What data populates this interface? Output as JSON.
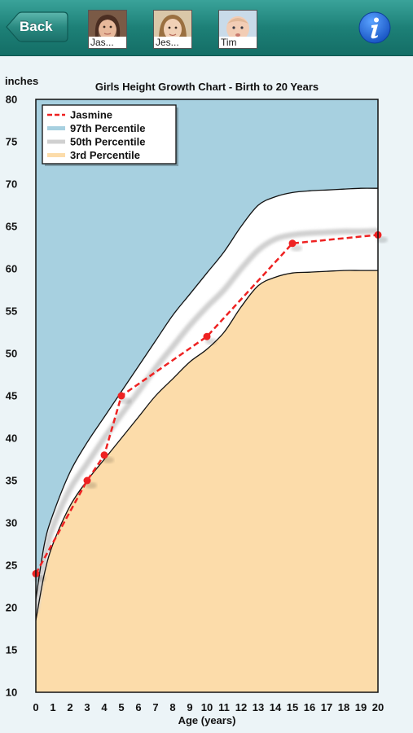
{
  "nav": {
    "back_label": "Back",
    "profiles": [
      {
        "name": "Jas...",
        "icon": "girl-photo"
      },
      {
        "name": "Jes...",
        "icon": "girl-photo"
      },
      {
        "name": "Tim",
        "icon": "baby-photo"
      }
    ],
    "info_icon": "info-icon",
    "colors": {
      "bar": "#1d8077",
      "info": "#1a66d6"
    }
  },
  "chart_data": {
    "type": "line",
    "title": "Girls Height Growth Chart - Birth to 20 Years",
    "ylabel": "inches",
    "xlabel": "Age (years)",
    "xlim": [
      0,
      20
    ],
    "ylim": [
      10,
      80
    ],
    "x_ticks": [
      "0",
      "1",
      "2",
      "3",
      "4",
      "5",
      "6",
      "7",
      "8",
      "9",
      "10",
      "11",
      "12",
      "13",
      "14",
      "15",
      "16",
      "17",
      "18",
      "19",
      "20"
    ],
    "y_ticks": [
      "10",
      "15",
      "20",
      "25",
      "30",
      "35",
      "40",
      "45",
      "50",
      "55",
      "60",
      "65",
      "70",
      "75",
      "80"
    ],
    "legend_position": "top-left",
    "colors": {
      "p97": "#a7d0e0",
      "p50": "#d0d0d0",
      "p3": "#fcdcaa",
      "jasmine": "#ee2222"
    },
    "legend": [
      "Jasmine",
      "97th Percentile",
      "50th Percentile",
      "3rd Percentile"
    ],
    "series": [
      {
        "name": "Jasmine",
        "x": [
          0,
          3,
          4,
          5,
          10,
          15,
          20
        ],
        "y": [
          24,
          35,
          38,
          45,
          52,
          63,
          64
        ]
      },
      {
        "name": "97th Percentile",
        "x": [
          0,
          0.5,
          1,
          2,
          3,
          4,
          5,
          6,
          7,
          8,
          9,
          10,
          11,
          12,
          13,
          14,
          15,
          16,
          17,
          18,
          19,
          20
        ],
        "y": [
          21,
          27.5,
          31,
          36,
          39.5,
          42.5,
          45.5,
          48.5,
          51.5,
          54.5,
          57,
          59.5,
          62,
          65,
          67.5,
          68.5,
          69,
          69.2,
          69.3,
          69.4,
          69.5,
          69.5
        ]
      },
      {
        "name": "50th Percentile",
        "x": [
          0,
          0.5,
          1,
          2,
          3,
          4,
          5,
          6,
          7,
          8,
          9,
          10,
          11,
          12,
          13,
          14,
          15,
          16,
          17,
          18,
          19,
          20
        ],
        "y": [
          19.8,
          25.8,
          29.5,
          34,
          37,
          40,
          42.8,
          45.5,
          48.3,
          50.8,
          53.3,
          55.5,
          57.5,
          60,
          62.2,
          63.5,
          64,
          64.2,
          64.3,
          64.4,
          64.4,
          64.5
        ]
      },
      {
        "name": "3rd Percentile",
        "x": [
          0,
          0.5,
          1,
          2,
          3,
          4,
          5,
          6,
          7,
          8,
          9,
          10,
          11,
          12,
          13,
          14,
          15,
          16,
          17,
          18,
          19,
          20
        ],
        "y": [
          18.5,
          24,
          27.5,
          32,
          35,
          37.5,
          40,
          42.5,
          45,
          47,
          49,
          50.5,
          52.5,
          55.5,
          58,
          59,
          59.5,
          59.6,
          59.7,
          59.8,
          59.8,
          59.8
        ]
      }
    ]
  }
}
